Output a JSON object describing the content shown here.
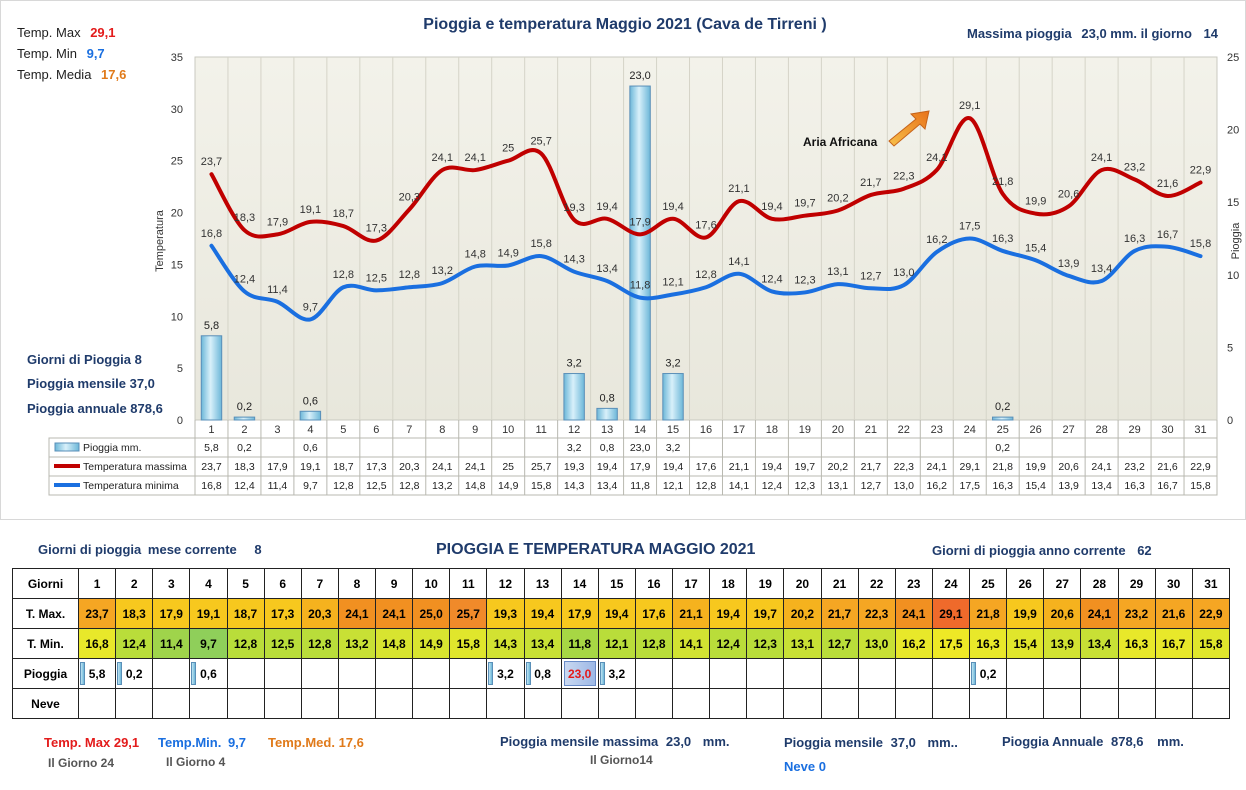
{
  "title": "Pioggia e temperatura Maggio 2021 (Cava de Tirreni )",
  "max_rain_text": {
    "label": "Massima pioggia",
    "value": "23,0 mm. il giorno",
    "day": "14"
  },
  "top_stats": {
    "tmax_label": "Temp. Max",
    "tmax_value": "29,1",
    "tmin_label": "Temp. Min",
    "tmin_value": "9,7",
    "tmed_label": "Temp. Media",
    "tmed_value": "17,6"
  },
  "left_stats": {
    "rain_days": "Giorni di Pioggia  8",
    "monthly_rain": "Pioggia mensile  37,0",
    "annual_rain": "Pioggia annuale  878,6"
  },
  "annotation": "Aria Africana",
  "chart_data": {
    "type": "line",
    "title": "Pioggia e temperatura Maggio 2021 (Cava de Tirreni )",
    "ylabel": "Temperatura",
    "y2label": "Pioggia",
    "ylim": [
      0,
      35
    ],
    "y2lim": [
      0,
      25
    ],
    "yticks": [
      "0",
      "5",
      "10",
      "15",
      "20",
      "25",
      "30",
      "35"
    ],
    "y2ticks": [
      "0",
      "5",
      "10",
      "15",
      "20",
      "25"
    ],
    "categories": [
      "1",
      "2",
      "3",
      "4",
      "5",
      "6",
      "7",
      "8",
      "9",
      "10",
      "11",
      "12",
      "13",
      "14",
      "15",
      "16",
      "17",
      "18",
      "19",
      "20",
      "21",
      "22",
      "23",
      "24",
      "25",
      "26",
      "27",
      "28",
      "29",
      "30",
      "31"
    ],
    "series": [
      {
        "name": "Pioggia mm.",
        "type": "bar",
        "axis": "right",
        "color": "#9fd3e8",
        "values": [
          5.8,
          0.2,
          null,
          0.6,
          null,
          null,
          null,
          null,
          null,
          null,
          null,
          3.2,
          0.8,
          23.0,
          3.2,
          null,
          null,
          null,
          null,
          null,
          null,
          null,
          null,
          null,
          0.2,
          null,
          null,
          null,
          null,
          null,
          null
        ],
        "labels": [
          "5,8",
          "0,2",
          "",
          "0,6",
          "",
          "",
          "",
          "",
          "",
          "",
          "",
          "3,2",
          "0,8",
          "23,0",
          "3,2",
          "",
          "",
          "",
          "",
          "",
          "",
          "",
          "",
          "",
          "0,2",
          "",
          "",
          "",
          "",
          "",
          ""
        ]
      },
      {
        "name": "Temperatura massima",
        "type": "line",
        "axis": "left",
        "color": "#c00000",
        "values": [
          23.7,
          18.3,
          17.9,
          19.1,
          18.7,
          17.3,
          20.3,
          24.1,
          24.1,
          25,
          25.7,
          19.3,
          19.4,
          17.9,
          19.4,
          17.6,
          21.1,
          19.4,
          19.7,
          20.2,
          21.7,
          22.3,
          24.1,
          29.1,
          21.8,
          19.9,
          20.6,
          24.1,
          23.2,
          21.6,
          22.9
        ],
        "labels": [
          "23,7",
          "18,3",
          "17,9",
          "19,1",
          "18,7",
          "17,3",
          "20,3",
          "24,1",
          "24,1",
          "25",
          "25,7",
          "19,3",
          "19,4",
          "17,9",
          "19,4",
          "17,6",
          "21,1",
          "19,4",
          "19,7",
          "20,2",
          "21,7",
          "22,3",
          "24,1",
          "29,1",
          "21,8",
          "19,9",
          "20,6",
          "24,1",
          "23,2",
          "21,6",
          "22,9"
        ]
      },
      {
        "name": "Temperatura minima",
        "type": "line",
        "axis": "left",
        "color": "#1a6fe0",
        "values": [
          16.8,
          12.4,
          11.4,
          9.7,
          12.8,
          12.5,
          12.8,
          13.2,
          14.8,
          14.9,
          15.8,
          14.3,
          13.4,
          11.8,
          12.1,
          12.8,
          14.1,
          12.4,
          12.3,
          13.1,
          12.7,
          13.0,
          16.2,
          17.5,
          16.3,
          15.4,
          13.9,
          13.4,
          16.3,
          16.7,
          15.8
        ],
        "labels": [
          "16,8",
          "12,4",
          "11,4",
          "9,7",
          "12,8",
          "12,5",
          "12,8",
          "13,2",
          "14,8",
          "14,9",
          "15,8",
          "14,3",
          "13,4",
          "11,8",
          "12,1",
          "12,8",
          "14,1",
          "12,4",
          "12,3",
          "13,1",
          "12,7",
          "13,0",
          "16,2",
          "17,5",
          "16,3",
          "15,4",
          "13,9",
          "13,4",
          "16,3",
          "16,7",
          "15,8"
        ]
      }
    ],
    "data_table_labels": {
      "rain": [
        "5,8",
        "0,2",
        "",
        "0,6",
        "",
        "",
        "",
        "",
        "",
        "",
        "",
        "3,2",
        "0,8",
        "23,0",
        "3,2",
        "",
        "",
        "",
        "",
        "",
        "",
        "",
        "",
        "",
        "0,2",
        "",
        "",
        "",
        "",
        "",
        ""
      ],
      "tmax": [
        "23,7",
        "18,3",
        "17,9",
        "19,1",
        "18,7",
        "17,3",
        "20,3",
        "24,1",
        "24,1",
        "25",
        "25,7",
        "19,3",
        "19,4",
        "17,9",
        "19,4",
        "17,6",
        "21,1",
        "19,4",
        "19,7",
        "20,2",
        "21,7",
        "22,3",
        "24,1",
        "29,1",
        "21,8",
        "19,9",
        "20,6",
        "24,1",
        "23,2",
        "21,6",
        "22,9"
      ],
      "tmin": [
        "16,8",
        "12,4",
        "11,4",
        "9,7",
        "12,8",
        "12,5",
        "12,8",
        "13,2",
        "14,8",
        "14,9",
        "15,8",
        "14,3",
        "13,4",
        "11,8",
        "12,1",
        "12,8",
        "14,1",
        "12,4",
        "12,3",
        "13,1",
        "12,7",
        "13,0",
        "16,2",
        "17,5",
        "16,3",
        "15,4",
        "13,9",
        "13,4",
        "16,3",
        "16,7",
        "15,8"
      ]
    },
    "grid": true,
    "legend": "bottom-table"
  },
  "bottom": {
    "rain_days_label": "Giorni di pioggia",
    "rain_days_suffix": "mese corrente",
    "rain_days_value": "8",
    "title": "PIOGGIA E TEMPERATURA MAGGIO 2021",
    "year_rain_days_label": "Giorni di pioggia anno corrente",
    "year_rain_days_value": "62",
    "table": {
      "row_labels": [
        "Giorni",
        "T. Max.",
        "T. Min.",
        "Pioggia",
        "Neve"
      ],
      "days": [
        "1",
        "2",
        "3",
        "4",
        "5",
        "6",
        "7",
        "8",
        "9",
        "10",
        "11",
        "12",
        "13",
        "14",
        "15",
        "16",
        "17",
        "18",
        "19",
        "20",
        "21",
        "22",
        "23",
        "24",
        "25",
        "26",
        "27",
        "28",
        "29",
        "30",
        "31"
      ],
      "tmax": [
        "23,7",
        "18,3",
        "17,9",
        "19,1",
        "18,7",
        "17,3",
        "20,3",
        "24,1",
        "24,1",
        "25,0",
        "25,7",
        "19,3",
        "19,4",
        "17,9",
        "19,4",
        "17,6",
        "21,1",
        "19,4",
        "19,7",
        "20,2",
        "21,7",
        "22,3",
        "24,1",
        "29,1",
        "21,8",
        "19,9",
        "20,6",
        "24,1",
        "23,2",
        "21,6",
        "22,9"
      ],
      "tmax_colors": [
        "#f5a623",
        "#f7c81e",
        "#f7c81e",
        "#f7c81e",
        "#f7c81e",
        "#f7c81e",
        "#f5b21e",
        "#f19021",
        "#f19021",
        "#f19021",
        "#f08a2a",
        "#f7c81e",
        "#f7c81e",
        "#f7c81e",
        "#f7c81e",
        "#f7c81e",
        "#f5b21e",
        "#f7c81e",
        "#f7c81e",
        "#f5b21e",
        "#f5a623",
        "#f5a623",
        "#f19021",
        "#ef6a2b",
        "#f5a623",
        "#f7c81e",
        "#f5b21e",
        "#f19021",
        "#f5a623",
        "#f5a623",
        "#f5a623"
      ],
      "tmin": [
        "16,8",
        "12,4",
        "11,4",
        "9,7",
        "12,8",
        "12,5",
        "12,8",
        "13,2",
        "14,8",
        "14,9",
        "15,8",
        "14,3",
        "13,4",
        "11,8",
        "12,1",
        "12,8",
        "14,1",
        "12,4",
        "12,3",
        "13,1",
        "12,7",
        "13,0",
        "16,2",
        "17,5",
        "16,3",
        "15,4",
        "13,9",
        "13,4",
        "16,3",
        "16,7",
        "15,8"
      ],
      "tmin_colors": [
        "#e8e82a",
        "#b9dd3a",
        "#9fd44b",
        "#8fcf5a",
        "#b9dd3a",
        "#b9dd3a",
        "#b9dd3a",
        "#c8e035",
        "#d8e430",
        "#d8e430",
        "#e0e62c",
        "#d2e232",
        "#c8e035",
        "#a7d744",
        "#b9dd3a",
        "#b9dd3a",
        "#d2e232",
        "#b9dd3a",
        "#b9dd3a",
        "#c8e035",
        "#b9dd3a",
        "#c8e035",
        "#e8e82a",
        "#eee826",
        "#e8e82a",
        "#e0e62c",
        "#d2e232",
        "#c8e035",
        "#e8e82a",
        "#e8e82a",
        "#e0e62c"
      ],
      "rain": [
        "5,8",
        "0,2",
        "",
        "0,6",
        "",
        "",
        "",
        "",
        "",
        "",
        "",
        "3,2",
        "0,8",
        "23,0",
        "3,2",
        "",
        "",
        "",
        "",
        "",
        "",
        "",
        "",
        "",
        "0,2",
        "",
        "",
        "",
        "",
        "",
        ""
      ],
      "snow": [
        "",
        "",
        "",
        "",
        "",
        "",
        "",
        "",
        "",
        "",
        "",
        "",
        "",
        "",
        "",
        "",
        "",
        "",
        "",
        "",
        "",
        "",
        "",
        "",
        "",
        "",
        "",
        "",
        "",
        "",
        ""
      ]
    },
    "footer": {
      "tmax_label": "Temp. Max",
      "tmax_value": "29,1",
      "tmax_day": "Il Giorno  24",
      "tmin_label": "Temp.Min.",
      "tmin_value": "9,7",
      "tmin_day": "Il Giorno  4",
      "tmed_label": "Temp.Med.",
      "tmed_value": "17,6",
      "max_rain_label": "Pioggia mensile massima",
      "max_rain_value": "23,0",
      "max_rain_unit": "mm.",
      "max_rain_day": "Il Giorno14",
      "monthly_rain_label": "Pioggia mensile",
      "monthly_rain_value": "37,0",
      "monthly_rain_unit": "mm..",
      "snow_text": "Neve 0",
      "annual_label": "Pioggia Annuale",
      "annual_value": "878,6",
      "annual_unit": "mm."
    }
  }
}
